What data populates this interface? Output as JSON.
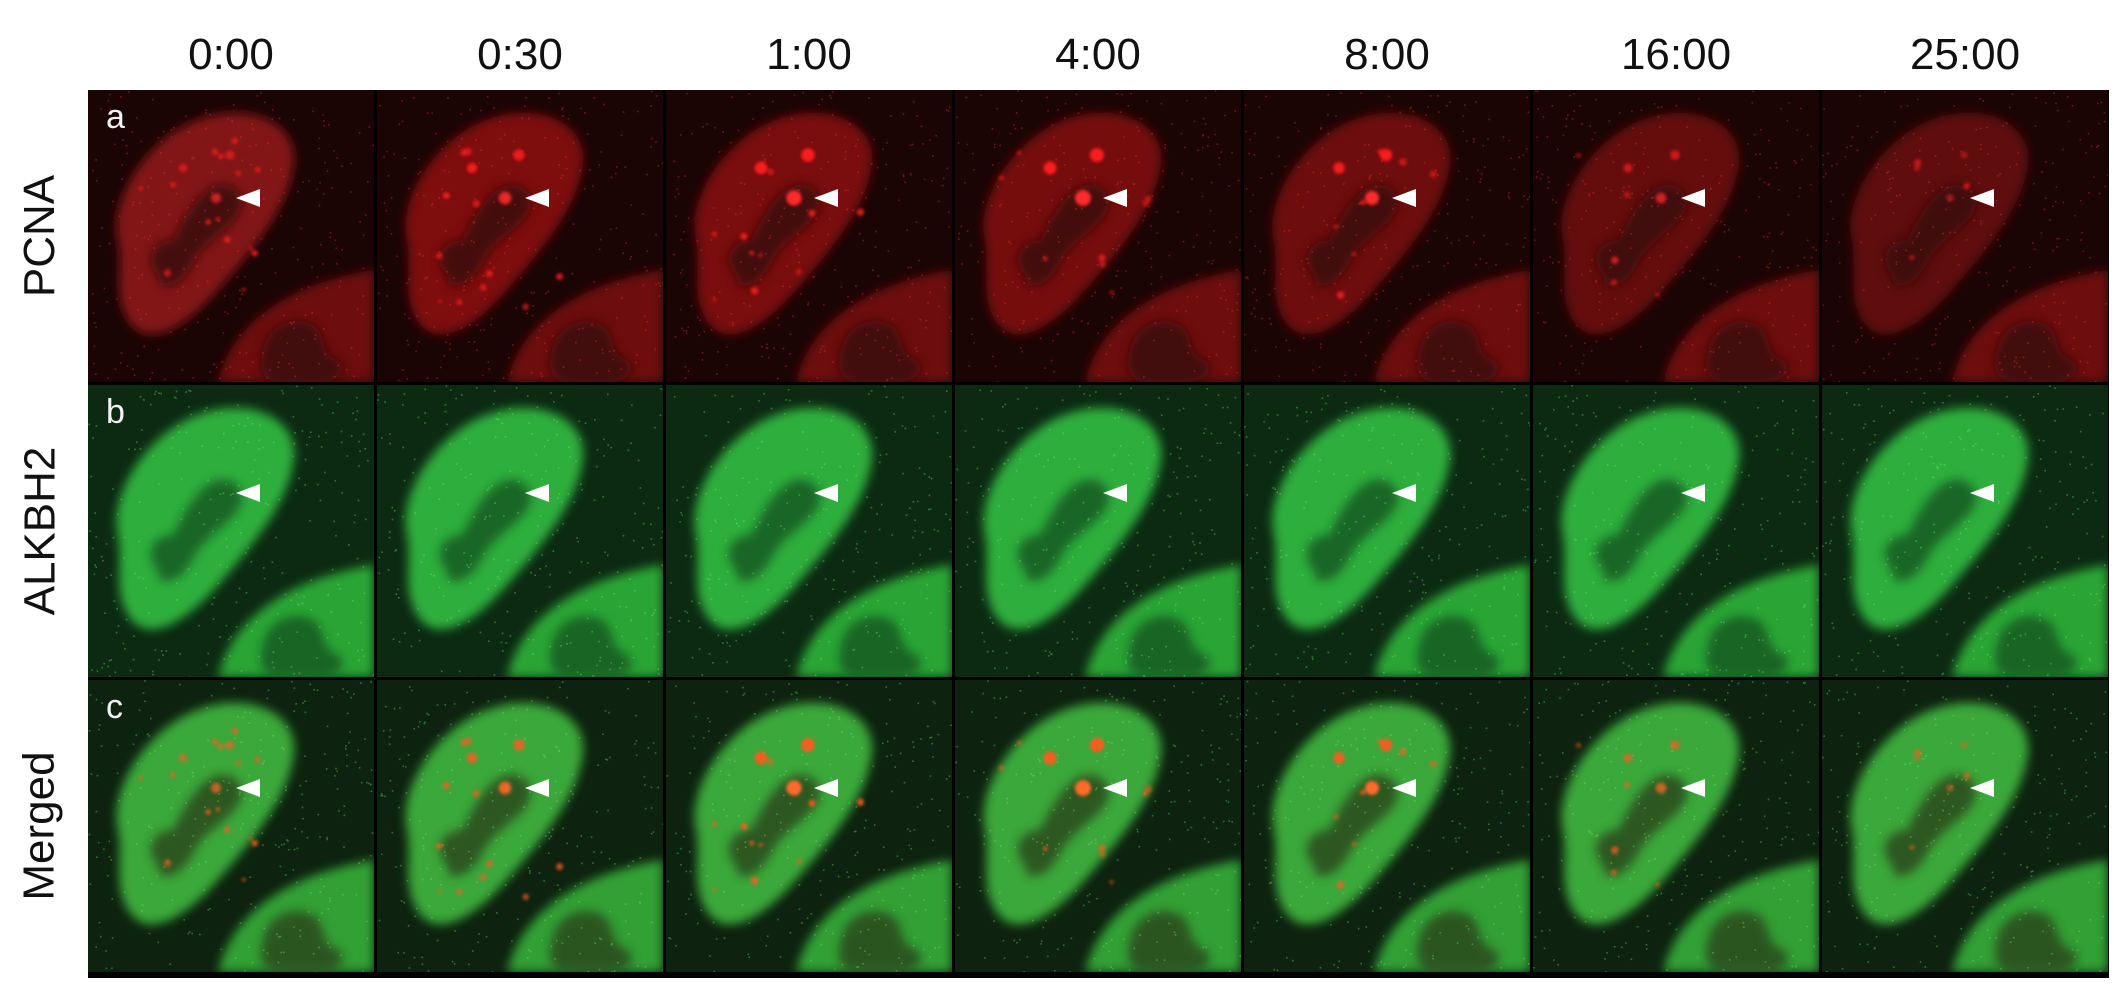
{
  "time_labels": [
    "0:00",
    "0:30",
    "1:00",
    "4:00",
    "8:00",
    "16:00",
    "25:00"
  ],
  "rows": [
    {
      "label": "PCNA",
      "letter": "a",
      "channel": "red"
    },
    {
      "label": "ALKBH2",
      "letter": "b",
      "channel": "green"
    },
    {
      "label": "Merged",
      "letter": "c",
      "channel": "merged"
    }
  ],
  "colors": {
    "red_signal": "#d11a1a",
    "green_signal": "#2fbf3a",
    "arrowhead": "#ffffff"
  },
  "pcna_focus_strength": [
    0.55,
    0.75,
    0.95,
    1.0,
    0.85,
    0.6,
    0.35
  ]
}
